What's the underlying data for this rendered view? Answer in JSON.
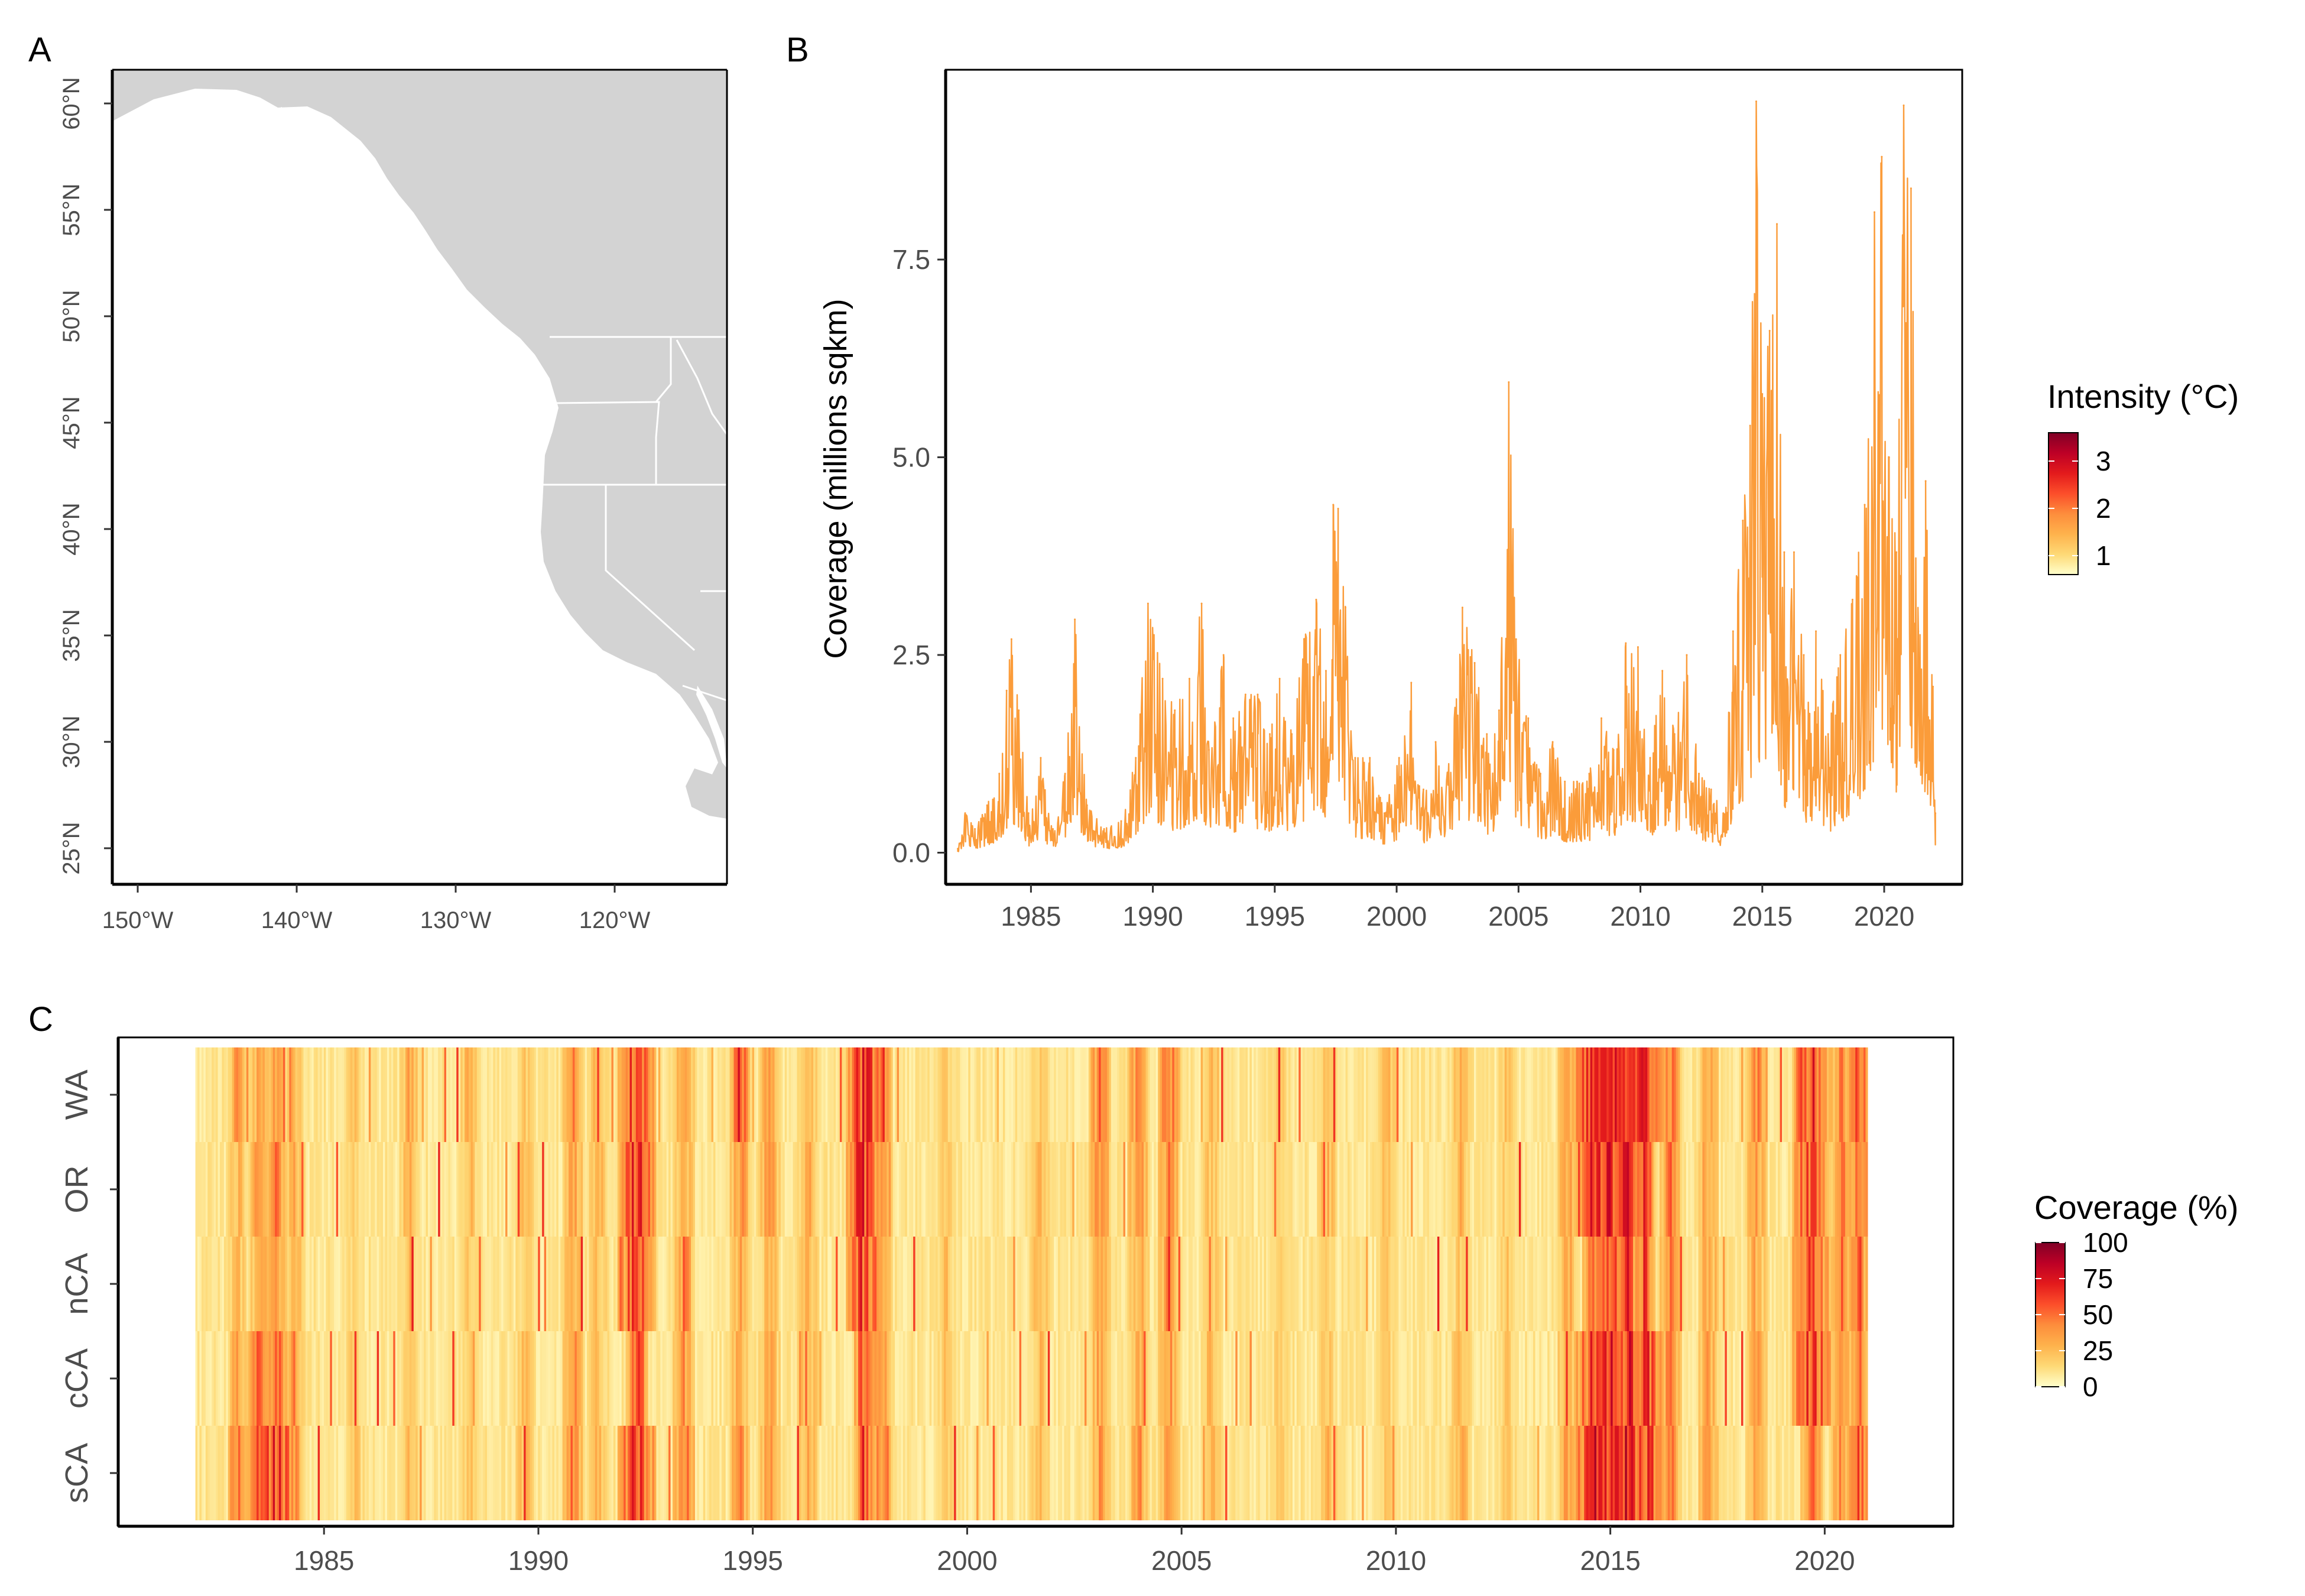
{
  "panels": {
    "a": "A",
    "b": "B",
    "c": "C"
  },
  "map": {
    "lat_labels": [
      "60°N",
      "55°N",
      "50°N",
      "45°N",
      "40°N",
      "35°N",
      "30°N",
      "25°N"
    ],
    "lat_values": [
      60,
      55,
      50,
      45,
      40,
      35,
      30,
      25
    ],
    "lon_labels": [
      "150°W",
      "140°W",
      "130°W",
      "120°W"
    ],
    "lon_values": [
      -150,
      -140,
      -130,
      -120
    ],
    "land_color": "#d3d3d3",
    "border_color": "#ffffff"
  },
  "chart_data": [
    {
      "panel": "B",
      "type": "line",
      "ylabel": "Coverage (millions sqkm)",
      "xlabel": "",
      "x_ticks": [
        "1985",
        "1990",
        "1995",
        "2000",
        "2005",
        "2010",
        "2015",
        "2020"
      ],
      "y_ticks": [
        "0.0",
        "2.5",
        "5.0",
        "7.5"
      ],
      "xlim": [
        1981.5,
        2023.2
      ],
      "ylim": [
        -0.4,
        9.9
      ],
      "grid": false,
      "legend": {
        "title": "Intensity (°C)",
        "labels": [
          "3",
          "2",
          "1"
        ],
        "values": [
          3,
          2,
          1
        ],
        "range": [
          0.6,
          3.6
        ],
        "colors": [
          "#ffffcc",
          "#fed976",
          "#feb24c",
          "#fd8d3c",
          "#fc4e2a",
          "#e31a1c",
          "#bd0026",
          "#800026"
        ],
        "placement": "right"
      },
      "line_color": "#fb9c3a",
      "peaks": [
        {
          "x": 1982.0,
          "y": 0.05
        },
        {
          "x": 1982.3,
          "y": 0.5
        },
        {
          "x": 1982.7,
          "y": 0.3
        },
        {
          "x": 1983.2,
          "y": 0.6
        },
        {
          "x": 1983.7,
          "y": 1.0
        },
        {
          "x": 1984.0,
          "y": 2.05
        },
        {
          "x": 1984.2,
          "y": 2.7
        },
        {
          "x": 1984.5,
          "y": 1.8
        },
        {
          "x": 1984.9,
          "y": 0.5
        },
        {
          "x": 1985.4,
          "y": 1.2
        },
        {
          "x": 1985.9,
          "y": 0.3
        },
        {
          "x": 1986.4,
          "y": 1.0
        },
        {
          "x": 1986.8,
          "y": 2.95
        },
        {
          "x": 1987.3,
          "y": 0.6
        },
        {
          "x": 1988.0,
          "y": 0.3
        },
        {
          "x": 1988.7,
          "y": 0.4
        },
        {
          "x": 1989.3,
          "y": 1.2
        },
        {
          "x": 1989.8,
          "y": 3.15
        },
        {
          "x": 1990.4,
          "y": 2.2
        },
        {
          "x": 1990.9,
          "y": 1.8
        },
        {
          "x": 1991.5,
          "y": 2.2
        },
        {
          "x": 1992.0,
          "y": 3.15
        },
        {
          "x": 1992.3,
          "y": 1.3
        },
        {
          "x": 1992.9,
          "y": 2.5
        },
        {
          "x": 1993.3,
          "y": 1.7
        },
        {
          "x": 1993.8,
          "y": 2.0
        },
        {
          "x": 1994.3,
          "y": 2.0
        },
        {
          "x": 1994.8,
          "y": 1.5
        },
        {
          "x": 1995.2,
          "y": 2.2
        },
        {
          "x": 1995.7,
          "y": 1.5
        },
        {
          "x": 1996.2,
          "y": 2.7
        },
        {
          "x": 1996.7,
          "y": 3.2
        },
        {
          "x": 1997.1,
          "y": 2.3
        },
        {
          "x": 1997.4,
          "y": 4.4
        },
        {
          "x": 1997.6,
          "y": 4.35
        },
        {
          "x": 1997.9,
          "y": 3.1
        },
        {
          "x": 1998.3,
          "y": 1.2
        },
        {
          "x": 1998.9,
          "y": 1.2
        },
        {
          "x": 1999.5,
          "y": 0.5
        },
        {
          "x": 2000.1,
          "y": 1.2
        },
        {
          "x": 2000.6,
          "y": 2.15
        },
        {
          "x": 2001.1,
          "y": 0.8
        },
        {
          "x": 2001.6,
          "y": 1.4
        },
        {
          "x": 2002.1,
          "y": 1.0
        },
        {
          "x": 2002.7,
          "y": 3.1
        },
        {
          "x": 2003.2,
          "y": 2.4
        },
        {
          "x": 2003.7,
          "y": 1.5
        },
        {
          "x": 2004.2,
          "y": 1.8
        },
        {
          "x": 2004.6,
          "y": 5.95
        },
        {
          "x": 2004.9,
          "y": 2.7
        },
        {
          "x": 2005.4,
          "y": 1.7
        },
        {
          "x": 2005.9,
          "y": 1.0
        },
        {
          "x": 2006.4,
          "y": 1.4
        },
        {
          "x": 2006.9,
          "y": 0.9
        },
        {
          "x": 2007.4,
          "y": 0.9
        },
        {
          "x": 2007.9,
          "y": 1.0
        },
        {
          "x": 2008.4,
          "y": 1.7
        },
        {
          "x": 2008.9,
          "y": 1.3
        },
        {
          "x": 2009.4,
          "y": 2.65
        },
        {
          "x": 2009.9,
          "y": 2.6
        },
        {
          "x": 2010.4,
          "y": 1.2
        },
        {
          "x": 2010.9,
          "y": 2.3
        },
        {
          "x": 2011.4,
          "y": 1.5
        },
        {
          "x": 2011.9,
          "y": 2.5
        },
        {
          "x": 2012.4,
          "y": 1.0
        },
        {
          "x": 2012.9,
          "y": 0.8
        },
        {
          "x": 2013.4,
          "y": 0.5
        },
        {
          "x": 2013.8,
          "y": 2.8
        },
        {
          "x": 2014.2,
          "y": 4.2
        },
        {
          "x": 2014.5,
          "y": 5.4
        },
        {
          "x": 2014.75,
          "y": 9.5
        },
        {
          "x": 2015.0,
          "y": 5.8
        },
        {
          "x": 2015.3,
          "y": 6.6
        },
        {
          "x": 2015.6,
          "y": 7.95
        },
        {
          "x": 2015.9,
          "y": 3.8
        },
        {
          "x": 2016.3,
          "y": 3.8
        },
        {
          "x": 2016.7,
          "y": 2.5
        },
        {
          "x": 2017.2,
          "y": 2.8
        },
        {
          "x": 2017.7,
          "y": 1.5
        },
        {
          "x": 2018.2,
          "y": 2.5
        },
        {
          "x": 2018.7,
          "y": 3.2
        },
        {
          "x": 2019.2,
          "y": 4.4
        },
        {
          "x": 2019.6,
          "y": 8.1
        },
        {
          "x": 2019.9,
          "y": 8.8
        },
        {
          "x": 2020.2,
          "y": 5.0
        },
        {
          "x": 2020.5,
          "y": 3.8
        },
        {
          "x": 2020.8,
          "y": 9.45
        },
        {
          "x": 2021.1,
          "y": 8.4
        },
        {
          "x": 2021.4,
          "y": 2.8
        },
        {
          "x": 2021.7,
          "y": 4.7
        },
        {
          "x": 2022.0,
          "y": 2.1
        },
        {
          "x": 2022.1,
          "y": 0.5
        }
      ]
    },
    {
      "panel": "C",
      "type": "heatmap",
      "xlabel": "",
      "ylabel": "",
      "rows": [
        "WA",
        "OR",
        "nCA",
        "cCA",
        "sCA"
      ],
      "x_ticks": [
        "1985",
        "1990",
        "1995",
        "2000",
        "2005",
        "2010",
        "2015",
        "2020"
      ],
      "xlim": [
        1980.2,
        2023.0
      ],
      "data_x_range": [
        1982.0,
        2021.0
      ],
      "grid": false,
      "legend": {
        "title": "Coverage (%)",
        "labels": [
          "100",
          "75",
          "50",
          "25",
          "0"
        ],
        "values": [
          100,
          75,
          50,
          25,
          0
        ],
        "range": [
          0,
          100
        ],
        "colors": [
          "#ffffcc",
          "#fed976",
          "#feb24c",
          "#fd8d3c",
          "#fc4e2a",
          "#e31a1c",
          "#bd0026",
          "#800026"
        ],
        "placement": "right"
      },
      "events": [
        {
          "x": 1983.0,
          "rows": [
            55,
            40,
            35,
            55,
            75
          ]
        },
        {
          "x": 1983.5,
          "rows": [
            45,
            60,
            50,
            70,
            85
          ]
        },
        {
          "x": 1983.9,
          "rows": [
            50,
            65,
            60,
            80,
            95
          ]
        },
        {
          "x": 1984.3,
          "rows": [
            40,
            40,
            45,
            55,
            55
          ]
        },
        {
          "x": 1985.7,
          "rows": [
            35,
            30,
            25,
            30,
            35
          ]
        },
        {
          "x": 1987.0,
          "rows": [
            45,
            40,
            30,
            35,
            40
          ]
        },
        {
          "x": 1988.4,
          "rows": [
            40,
            35,
            30,
            25,
            30
          ]
        },
        {
          "x": 1989.7,
          "rows": [
            30,
            35,
            30,
            35,
            40
          ]
        },
        {
          "x": 1990.8,
          "rows": [
            55,
            55,
            50,
            60,
            60
          ]
        },
        {
          "x": 1991.4,
          "rows": [
            40,
            40,
            35,
            35,
            40
          ]
        },
        {
          "x": 1992.3,
          "rows": [
            95,
            90,
            90,
            85,
            95
          ]
        },
        {
          "x": 1993.4,
          "rows": [
            55,
            50,
            60,
            55,
            75
          ]
        },
        {
          "x": 1994.7,
          "rows": [
            85,
            55,
            45,
            45,
            55
          ]
        },
        {
          "x": 1995.4,
          "rows": [
            50,
            55,
            40,
            45,
            60
          ]
        },
        {
          "x": 1996.3,
          "rows": [
            40,
            45,
            40,
            45,
            45
          ]
        },
        {
          "x": 1997.6,
          "rows": [
            95,
            95,
            90,
            80,
            85
          ]
        },
        {
          "x": 1998.0,
          "rows": [
            80,
            75,
            60,
            60,
            65
          ]
        },
        {
          "x": 1999.5,
          "rows": [
            30,
            30,
            35,
            30,
            35
          ]
        },
        {
          "x": 2001.7,
          "rows": [
            30,
            40,
            40,
            35,
            40
          ]
        },
        {
          "x": 2003.1,
          "rows": [
            65,
            60,
            45,
            50,
            55
          ]
        },
        {
          "x": 2004.0,
          "rows": [
            60,
            60,
            45,
            45,
            50
          ]
        },
        {
          "x": 2004.7,
          "rows": [
            70,
            65,
            55,
            50,
            55
          ]
        },
        {
          "x": 2005.7,
          "rows": [
            35,
            35,
            35,
            40,
            40
          ]
        },
        {
          "x": 2007.3,
          "rows": [
            30,
            30,
            25,
            30,
            30
          ]
        },
        {
          "x": 2008.4,
          "rows": [
            35,
            40,
            30,
            35,
            40
          ]
        },
        {
          "x": 2009.8,
          "rows": [
            40,
            35,
            30,
            30,
            35
          ]
        },
        {
          "x": 2011.5,
          "rows": [
            40,
            40,
            30,
            40,
            45
          ]
        },
        {
          "x": 2012.6,
          "rows": [
            35,
            30,
            30,
            30,
            30
          ]
        },
        {
          "x": 2014.0,
          "rows": [
            45,
            50,
            45,
            50,
            55
          ]
        },
        {
          "x": 2014.6,
          "rows": [
            95,
            95,
            85,
            90,
            98
          ]
        },
        {
          "x": 2015.0,
          "rows": [
            100,
            95,
            90,
            95,
            100
          ]
        },
        {
          "x": 2015.4,
          "rows": [
            95,
            90,
            85,
            95,
            100
          ]
        },
        {
          "x": 2015.8,
          "rows": [
            90,
            85,
            80,
            90,
            95
          ]
        },
        {
          "x": 2016.4,
          "rows": [
            70,
            65,
            60,
            60,
            65
          ]
        },
        {
          "x": 2017.3,
          "rows": [
            50,
            55,
            50,
            50,
            55
          ]
        },
        {
          "x": 2018.4,
          "rows": [
            60,
            55,
            45,
            50,
            50
          ]
        },
        {
          "x": 2019.7,
          "rows": [
            95,
            90,
            90,
            95,
            70
          ]
        },
        {
          "x": 2020.4,
          "rows": [
            65,
            60,
            60,
            55,
            60
          ]
        },
        {
          "x": 2020.8,
          "rows": [
            80,
            75,
            70,
            70,
            80
          ]
        }
      ]
    }
  ]
}
